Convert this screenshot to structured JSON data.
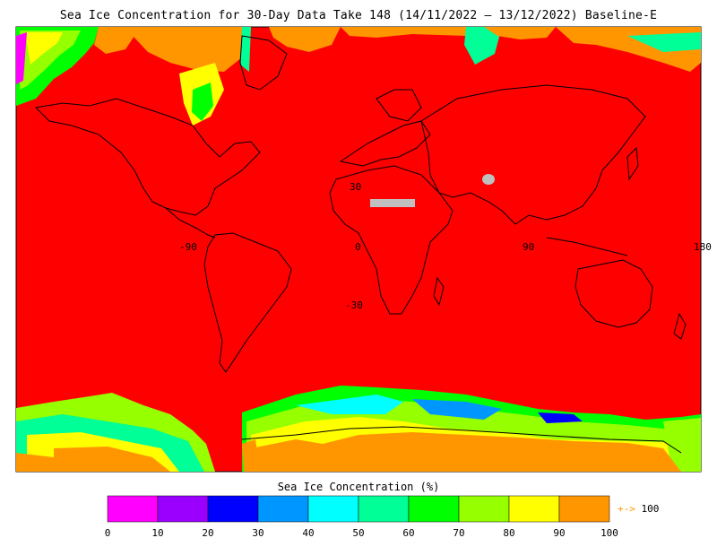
{
  "title": "Sea Ice Concentration for 30-Day Data Take 148 (14/11/2022 – 13/12/2022) Baseline-E",
  "map": {
    "lat_labels": [
      "30",
      "0",
      "-30"
    ],
    "lon_labels": [
      "-90",
      "0",
      "90",
      "180"
    ],
    "colors": {
      "ocean": "#ff0000",
      "land_outline": "#000000",
      "no_data": "#c0c0c0",
      "grid": "#b08080"
    }
  },
  "colorbar": {
    "title": "Sea Ice Concentration (%)",
    "ticks": [
      "0",
      "10",
      "20",
      "30",
      "40",
      "50",
      "60",
      "70",
      "80",
      "90",
      "100"
    ],
    "colors": [
      "#ff00ff",
      "#9b00ff",
      "#0000ff",
      "#0096ff",
      "#00ffff",
      "#00ff96",
      "#00ff00",
      "#96ff00",
      "#ffff00",
      "#ff9600"
    ],
    "overflow_color": "#ff9a00",
    "overflow_arrow": "+->",
    "overflow_label": "100"
  }
}
